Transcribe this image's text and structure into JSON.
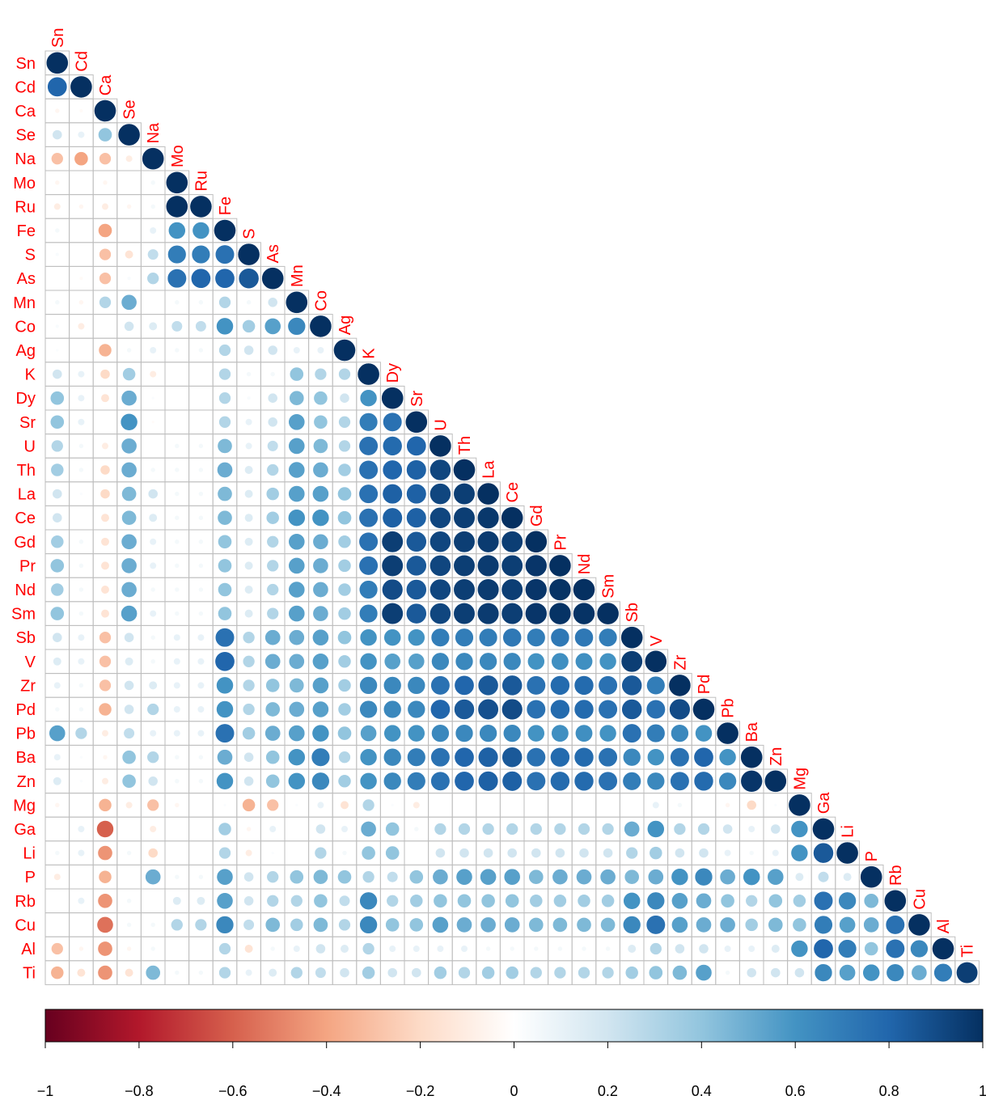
{
  "chart_data": {
    "type": "heatmap",
    "variables": [
      "Sn",
      "Cd",
      "Ca",
      "Se",
      "Na",
      "Mo",
      "Ru",
      "Fe",
      "S",
      "As",
      "Mn",
      "Co",
      "Ag",
      "K",
      "Dy",
      "Sr",
      "U",
      "Th",
      "La",
      "Ce",
      "Gd",
      "Pr",
      "Nd",
      "Sm",
      "Sb",
      "V",
      "Zr",
      "Pd",
      "Pb",
      "Ba",
      "Zn",
      "Mg",
      "Ga",
      "Li",
      "P",
      "Rb",
      "Cu",
      "Al",
      "Ti"
    ],
    "matrix": [
      [
        1.0
      ],
      [
        0.8,
        1.0
      ],
      [
        -0.05,
        -0.03,
        1.0
      ],
      [
        0.2,
        0.1,
        0.4,
        1.0
      ],
      [
        -0.3,
        -0.4,
        -0.3,
        -0.1,
        1.0
      ],
      [
        -0.05,
        0.0,
        -0.05,
        0.0,
        0.05,
        1.0
      ],
      [
        -0.1,
        -0.05,
        -0.1,
        -0.05,
        0.05,
        1.0,
        1.0
      ],
      [
        0.05,
        0.0,
        -0.4,
        0.0,
        0.1,
        0.6,
        0.6,
        1.0
      ],
      [
        0.03,
        0.0,
        -0.3,
        -0.15,
        0.25,
        0.7,
        0.7,
        0.75,
        1.0
      ],
      [
        0.0,
        -0.03,
        -0.3,
        0.03,
        0.3,
        0.75,
        0.8,
        0.8,
        0.85,
        1.0
      ],
      [
        0.05,
        -0.05,
        0.3,
        0.5,
        0.0,
        0.05,
        0.05,
        0.3,
        0.05,
        0.2,
        1.0
      ],
      [
        0.03,
        -0.1,
        0.0,
        0.2,
        0.15,
        0.25,
        0.25,
        0.6,
        0.35,
        0.55,
        0.65,
        1.0
      ],
      [
        0.02,
        0.0,
        -0.35,
        0.05,
        0.1,
        0.05,
        0.05,
        0.3,
        0.2,
        0.2,
        0.1,
        0.1,
        1.0
      ],
      [
        0.2,
        0.1,
        -0.2,
        0.35,
        -0.1,
        0.0,
        0.0,
        0.3,
        0.05,
        0.05,
        0.4,
        0.3,
        0.3,
        1.0
      ],
      [
        0.4,
        0.1,
        -0.15,
        0.5,
        0.02,
        0.0,
        0.0,
        0.3,
        0.03,
        0.2,
        0.45,
        0.4,
        0.2,
        0.6,
        1.0
      ],
      [
        0.4,
        0.1,
        0.0,
        0.6,
        -0.02,
        0.0,
        0.0,
        0.3,
        0.1,
        0.2,
        0.55,
        0.4,
        0.3,
        0.7,
        0.75,
        1.0
      ],
      [
        0.3,
        0.05,
        -0.1,
        0.5,
        0.0,
        0.05,
        0.05,
        0.45,
        0.1,
        0.25,
        0.55,
        0.45,
        0.3,
        0.75,
        0.78,
        0.8,
        1.0
      ],
      [
        0.35,
        0.05,
        -0.2,
        0.5,
        0.05,
        0.05,
        0.05,
        0.5,
        0.15,
        0.3,
        0.55,
        0.5,
        0.35,
        0.75,
        0.8,
        0.82,
        0.92,
        1.0
      ],
      [
        0.2,
        0.02,
        -0.2,
        0.45,
        0.2,
        0.05,
        0.05,
        0.45,
        0.15,
        0.35,
        0.55,
        0.55,
        0.4,
        0.75,
        0.82,
        0.82,
        0.92,
        0.95,
        1.0
      ],
      [
        0.2,
        0.0,
        -0.15,
        0.45,
        0.15,
        0.05,
        0.05,
        0.45,
        0.15,
        0.35,
        0.6,
        0.6,
        0.4,
        0.75,
        0.82,
        0.82,
        0.92,
        0.95,
        0.97,
        1.0
      ],
      [
        0.35,
        0.05,
        -0.15,
        0.5,
        0.1,
        0.05,
        0.05,
        0.4,
        0.15,
        0.3,
        0.55,
        0.5,
        0.35,
        0.75,
        0.95,
        0.85,
        0.92,
        0.95,
        0.96,
        0.95,
        1.0
      ],
      [
        0.4,
        0.05,
        -0.15,
        0.5,
        0.1,
        0.05,
        0.05,
        0.4,
        0.15,
        0.3,
        0.55,
        0.5,
        0.35,
        0.75,
        0.95,
        0.85,
        0.92,
        0.95,
        0.96,
        0.95,
        0.98,
        1.0
      ],
      [
        0.35,
        0.05,
        -0.15,
        0.5,
        0.05,
        0.05,
        0.05,
        0.4,
        0.15,
        0.3,
        0.55,
        0.5,
        0.35,
        0.7,
        0.9,
        0.85,
        0.92,
        0.95,
        0.96,
        0.95,
        0.98,
        0.99,
        1.0
      ],
      [
        0.4,
        0.05,
        -0.15,
        0.55,
        0.1,
        0.05,
        0.05,
        0.4,
        0.15,
        0.3,
        0.55,
        0.5,
        0.35,
        0.7,
        0.95,
        0.85,
        0.92,
        0.95,
        0.96,
        0.95,
        0.98,
        0.99,
        0.99,
        1.0
      ],
      [
        0.2,
        0.1,
        -0.3,
        0.2,
        0.05,
        0.1,
        0.1,
        0.75,
        0.3,
        0.5,
        0.5,
        0.55,
        0.4,
        0.6,
        0.6,
        0.6,
        0.7,
        0.7,
        0.7,
        0.72,
        0.7,
        0.72,
        0.72,
        0.7,
        1.0
      ],
      [
        0.15,
        0.1,
        -0.3,
        0.15,
        0.05,
        0.1,
        0.1,
        0.8,
        0.3,
        0.5,
        0.5,
        0.55,
        0.35,
        0.6,
        0.55,
        0.55,
        0.65,
        0.65,
        0.65,
        0.65,
        0.6,
        0.62,
        0.62,
        0.6,
        0.95,
        1.0
      ],
      [
        0.1,
        0.05,
        -0.3,
        0.2,
        0.15,
        0.1,
        0.1,
        0.6,
        0.3,
        0.4,
        0.45,
        0.55,
        0.35,
        0.65,
        0.65,
        0.65,
        0.75,
        0.8,
        0.85,
        0.85,
        0.75,
        0.78,
        0.78,
        0.75,
        0.85,
        0.7,
        1.0
      ],
      [
        0.05,
        0.05,
        -0.35,
        0.2,
        0.3,
        0.1,
        0.1,
        0.6,
        0.3,
        0.45,
        0.5,
        0.55,
        0.35,
        0.65,
        0.65,
        0.65,
        0.8,
        0.85,
        0.88,
        0.9,
        0.75,
        0.78,
        0.78,
        0.75,
        0.85,
        0.75,
        0.9,
        1.0
      ],
      [
        0.55,
        0.3,
        -0.1,
        0.25,
        0.1,
        0.1,
        0.1,
        0.75,
        0.35,
        0.5,
        0.55,
        0.6,
        0.4,
        0.55,
        0.6,
        0.6,
        0.65,
        0.65,
        0.65,
        0.65,
        0.6,
        0.62,
        0.62,
        0.6,
        0.75,
        0.7,
        0.65,
        0.6,
        1.0
      ],
      [
        0.1,
        0.02,
        -0.05,
        0.4,
        0.3,
        0.05,
        0.05,
        0.5,
        0.2,
        0.4,
        0.6,
        0.7,
        0.3,
        0.6,
        0.65,
        0.7,
        0.75,
        0.8,
        0.82,
        0.85,
        0.75,
        0.78,
        0.78,
        0.75,
        0.65,
        0.6,
        0.75,
        0.8,
        0.6,
        1.0
      ],
      [
        0.15,
        0.02,
        -0.1,
        0.4,
        0.2,
        0.05,
        0.05,
        0.6,
        0.2,
        0.4,
        0.6,
        0.65,
        0.35,
        0.6,
        0.65,
        0.7,
        0.75,
        0.8,
        0.82,
        0.82,
        0.75,
        0.78,
        0.78,
        0.75,
        0.7,
        0.65,
        0.75,
        0.78,
        0.65,
        0.98,
        1.0
      ],
      [
        -0.05,
        0.0,
        -0.35,
        -0.1,
        -0.3,
        -0.05,
        0.0,
        0.02,
        -0.35,
        -0.3,
        0.02,
        0.1,
        -0.15,
        0.3,
        0.02,
        -0.1,
        0.0,
        0.0,
        0.0,
        0.0,
        0.0,
        0.0,
        0.0,
        0.0,
        0.0,
        0.1,
        0.05,
        0.0,
        -0.05,
        -0.2,
        0.02,
        1.0
      ],
      [
        0.0,
        0.1,
        -0.6,
        0.0,
        -0.1,
        0.0,
        0.0,
        0.35,
        -0.05,
        0.1,
        0.0,
        0.2,
        0.1,
        0.5,
        0.4,
        0.05,
        0.3,
        0.3,
        0.3,
        0.3,
        0.3,
        0.3,
        0.3,
        0.3,
        0.5,
        0.6,
        0.3,
        0.3,
        0.2,
        0.1,
        0.2,
        0.6,
        1.0
      ],
      [
        0.05,
        0.1,
        -0.45,
        0.05,
        -0.2,
        0.0,
        0.0,
        0.3,
        -0.1,
        0.02,
        0.0,
        0.3,
        0.05,
        0.4,
        0.4,
        0.0,
        0.2,
        0.2,
        0.2,
        0.2,
        0.2,
        0.2,
        0.2,
        0.2,
        0.3,
        0.35,
        0.2,
        0.2,
        0.1,
        0.05,
        0.1,
        0.6,
        0.85,
        1.0
      ],
      [
        -0.1,
        0.0,
        -0.35,
        0.0,
        0.5,
        0.05,
        0.05,
        0.55,
        0.2,
        0.3,
        0.4,
        0.45,
        0.4,
        0.3,
        0.25,
        0.4,
        0.5,
        0.55,
        0.55,
        0.55,
        0.45,
        0.5,
        0.5,
        0.5,
        0.45,
        0.5,
        0.6,
        0.65,
        0.5,
        0.6,
        0.55,
        0.15,
        0.25,
        0.15,
        1.0
      ],
      [
        0.0,
        0.1,
        -0.45,
        0.05,
        0.0,
        0.15,
        0.15,
        0.55,
        0.2,
        0.3,
        0.3,
        0.4,
        0.25,
        0.65,
        0.3,
        0.35,
        0.4,
        0.4,
        0.4,
        0.4,
        0.35,
        0.35,
        0.35,
        0.35,
        0.6,
        0.65,
        0.55,
        0.5,
        0.4,
        0.3,
        0.4,
        0.35,
        0.75,
        0.65,
        0.45,
        1.0
      ],
      [
        0.0,
        0.0,
        -0.55,
        0.05,
        0.05,
        0.3,
        0.3,
        0.65,
        0.25,
        0.45,
        0.35,
        0.45,
        0.3,
        0.65,
        0.4,
        0.4,
        0.55,
        0.5,
        0.5,
        0.5,
        0.45,
        0.45,
        0.45,
        0.45,
        0.65,
        0.75,
        0.55,
        0.5,
        0.5,
        0.35,
        0.45,
        0.4,
        0.7,
        0.55,
        0.5,
        0.75,
        1.0
      ],
      [
        -0.3,
        -0.05,
        -0.45,
        -0.05,
        0.05,
        0.0,
        0.0,
        0.3,
        -0.15,
        0.05,
        0.1,
        0.2,
        0.15,
        0.3,
        0.1,
        0.1,
        0.1,
        0.1,
        0.05,
        0.05,
        0.05,
        0.05,
        0.05,
        0.05,
        0.15,
        0.3,
        0.2,
        0.2,
        0.1,
        0.1,
        0.15,
        0.6,
        0.8,
        0.7,
        0.4,
        0.75,
        0.65,
        1.0
      ],
      [
        -0.35,
        -0.15,
        -0.45,
        -0.15,
        0.45,
        0.05,
        0.05,
        0.3,
        0.1,
        0.15,
        0.3,
        0.25,
        0.2,
        0.35,
        0.2,
        0.2,
        0.35,
        0.3,
        0.35,
        0.35,
        0.3,
        0.3,
        0.3,
        0.3,
        0.35,
        0.4,
        0.45,
        0.55,
        0.05,
        0.2,
        0.2,
        0.2,
        0.65,
        0.55,
        0.6,
        0.65,
        0.5,
        0.7,
        0.95
      ]
    ],
    "colorbar": {
      "min": -1,
      "max": 1,
      "tick_labels": [
        "−1",
        "−0.8",
        "−0.6",
        "−0.4",
        "−0.2",
        "0",
        "0.2",
        "0.4",
        "0.6",
        "0.8",
        "1"
      ]
    },
    "colors": {
      "neg_end": "#67001f",
      "mid": "#ffffff",
      "pos_end": "#053061",
      "label": "#ff0000",
      "grid": "#bebebe"
    }
  }
}
